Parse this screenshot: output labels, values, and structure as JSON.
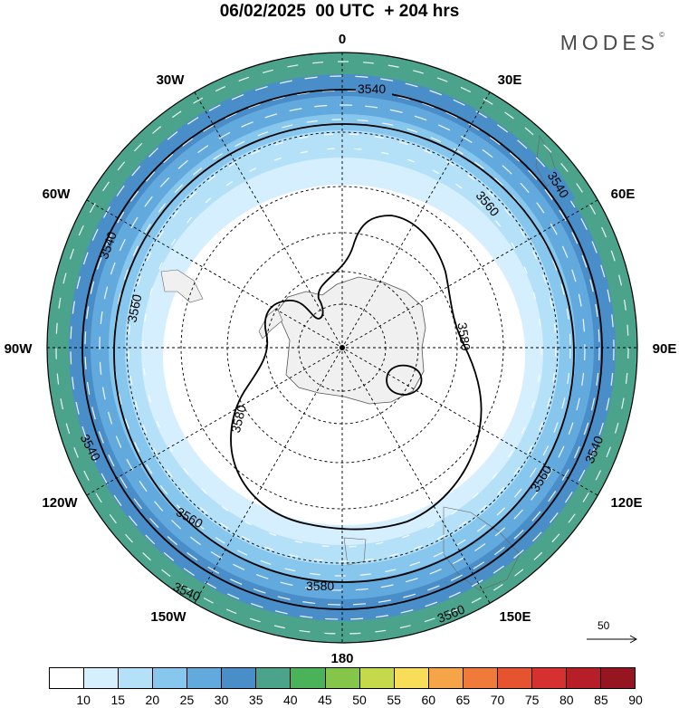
{
  "header": {
    "title": "06/02/2025  00 UTC  + 204 hrs",
    "brand": "MODES",
    "brand_mark": "©"
  },
  "map": {
    "projection": "south polar stereographic",
    "longitude_labels": [
      "0",
      "30E",
      "60E",
      "90E",
      "120E",
      "150E",
      "180",
      "150W",
      "120W",
      "90W",
      "60W",
      "30W"
    ],
    "contour_labels": [
      "3540",
      "3540",
      "3540",
      "3540",
      "3540",
      "3540",
      "3560",
      "3560",
      "3560",
      "3560",
      "3560",
      "3580",
      "3580",
      "3580"
    ],
    "contour_levels": [
      3540,
      3560,
      3580
    ],
    "land_color": "#f0f0f0",
    "vector_color": "#ffffff"
  },
  "reference_vector": {
    "label": "50"
  },
  "colorbar": {
    "colors": [
      "#ffffff",
      "#d6efff",
      "#b4e1f8",
      "#87c7ee",
      "#62a9dd",
      "#4a8ec9",
      "#4aa38a",
      "#4ab35a",
      "#84c54a",
      "#c5d94a",
      "#f7dd58",
      "#f5a547",
      "#ef7a3a",
      "#e5532f",
      "#d63030",
      "#b81e28",
      "#951620"
    ],
    "labels": [
      "10",
      "15",
      "20",
      "25",
      "30",
      "35",
      "40",
      "45",
      "50",
      "55",
      "60",
      "65",
      "70",
      "75",
      "80",
      "85",
      "90"
    ]
  }
}
